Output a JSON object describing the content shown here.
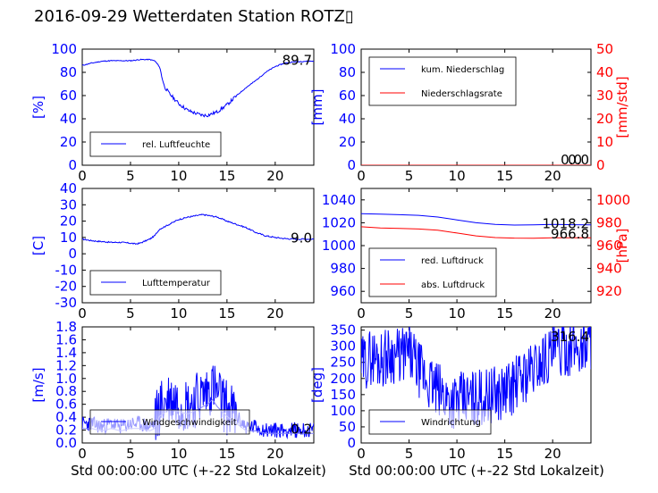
{
  "title": "2016-09-29 Wetterdaten Station ROTZ",
  "title_glyph": "▯",
  "xlabel": "Std 00:00:00 UTC (+-22 Std Lokalzeit)",
  "colors": {
    "left_axis": "#0000ff",
    "right_axis": "#ff0000",
    "series1": "#0000ff",
    "series2": "#ff0000",
    "wind_avg": "#8080ff"
  },
  "chart_data": [
    {
      "type": "line",
      "xlim": [
        0,
        24
      ],
      "xticks": [
        0,
        5,
        10,
        15,
        20
      ],
      "ylim": [
        0,
        100
      ],
      "yticks": [
        0,
        20,
        40,
        60,
        80,
        100
      ],
      "ylabel": "[%]",
      "legend": "lower-left",
      "series": [
        {
          "name": "rel. Luftfeuchte",
          "x": [
            0,
            0.5,
            1,
            2,
            3,
            4,
            5,
            6,
            7,
            7.5,
            8,
            8.5,
            9,
            10,
            11,
            12,
            12.5,
            13,
            14,
            15,
            16,
            17,
            18,
            19,
            20,
            21,
            22,
            23,
            24
          ],
          "y": [
            86,
            87,
            88,
            89.5,
            90,
            90,
            90,
            91,
            91,
            90,
            85,
            68,
            62,
            53,
            47,
            44,
            43,
            43,
            46,
            52,
            60,
            67,
            73,
            80,
            85,
            88,
            89,
            89.5,
            89.7
          ]
        }
      ],
      "last_value": "89.7"
    },
    {
      "type": "line",
      "xlim": [
        0,
        24
      ],
      "xticks": [
        0,
        5,
        10,
        15,
        20
      ],
      "ylim": [
        0,
        100
      ],
      "yticks": [
        0,
        20,
        40,
        60,
        80,
        100
      ],
      "ylim_right": [
        0,
        50
      ],
      "yticks_right": [
        0,
        10,
        20,
        30,
        40,
        50
      ],
      "ylabel": "[mm]",
      "ylabel_right": "[mm/std]",
      "legend": "upper-left",
      "series": [
        {
          "name": "kum. Niederschlag",
          "x": [
            0,
            24
          ],
          "y": [
            0,
            0
          ]
        },
        {
          "name": "Niederschlagsrate",
          "x": [
            0,
            24
          ],
          "y": [
            0,
            0
          ]
        }
      ],
      "last_values": [
        "0.0",
        "0.0"
      ]
    },
    {
      "type": "line",
      "xlim": [
        0,
        24
      ],
      "xticks": [
        0,
        5,
        10,
        15,
        20
      ],
      "ylim": [
        -30,
        40
      ],
      "yticks": [
        -30,
        -20,
        -10,
        0,
        10,
        20,
        30,
        40
      ],
      "ylabel": "[C]",
      "legend": "lower-left",
      "series": [
        {
          "name": "Lufttemperatur",
          "x": [
            0,
            1,
            2,
            3,
            4,
            5,
            5.5,
            6,
            7,
            7.5,
            8,
            9,
            10,
            11,
            12,
            12.5,
            13,
            14,
            15,
            16,
            17,
            18,
            19,
            20,
            21,
            22,
            23,
            24
          ],
          "y": [
            9,
            8,
            7.5,
            7,
            7,
            6.5,
            6,
            6.5,
            9,
            11,
            15,
            18,
            21,
            22.5,
            23.5,
            24,
            23.5,
            22.5,
            20,
            18,
            16,
            13,
            11,
            10,
            9.3,
            9,
            9,
            9
          ]
        }
      ],
      "last_value": "9.0"
    },
    {
      "type": "line",
      "xlim": [
        0,
        24
      ],
      "xticks": [
        0,
        5,
        10,
        15,
        20
      ],
      "ylim": [
        950,
        1050
      ],
      "yticks": [
        960,
        980,
        1000,
        1020,
        1040
      ],
      "ylim_right": [
        910,
        1010
      ],
      "yticks_right": [
        920,
        940,
        960,
        980,
        1000
      ],
      "ylabel_right": "[hPa]",
      "legend": "lower-left",
      "series": [
        {
          "name": "red. Luftdruck",
          "x": [
            0,
            2,
            4,
            6,
            8,
            10,
            12,
            14,
            16,
            18,
            20,
            22,
            24
          ],
          "y": [
            1028,
            1027.5,
            1027,
            1026.5,
            1025,
            1022.5,
            1020,
            1018.5,
            1018,
            1018.2,
            1018.5,
            1018.3,
            1018.2
          ]
        },
        {
          "name": "abs. Luftdruck",
          "x": [
            0,
            2,
            4,
            6,
            8,
            10,
            12,
            14,
            16,
            18,
            20,
            22,
            24
          ],
          "y": [
            976.5,
            975.5,
            975,
            974.5,
            973.5,
            971,
            968.5,
            967,
            966.6,
            966.5,
            966.8,
            966.8,
            966.8
          ]
        }
      ],
      "last_values": [
        "1018.2",
        "966.8"
      ]
    },
    {
      "type": "line",
      "xlim": [
        0,
        24
      ],
      "xticks": [
        0,
        5,
        10,
        15,
        20
      ],
      "ylim": [
        0,
        1.8
      ],
      "yticks": [
        0,
        0.2,
        0.4,
        0.6,
        0.8,
        1.0,
        1.2,
        1.4,
        1.6,
        1.8
      ],
      "ylabel": "[m/s]",
      "legend": "lower-left",
      "series": [
        {
          "name": "Windgeschwindigkeit",
          "x": [
            0,
            1,
            2,
            3,
            4,
            5,
            6,
            7,
            7.5,
            8,
            9,
            10,
            11,
            12,
            13,
            13.5,
            14,
            15,
            16,
            17,
            18,
            19,
            20,
            21,
            22,
            23,
            24
          ],
          "y": [
            0.3,
            0.3,
            0.25,
            0.3,
            0.25,
            0.3,
            0.3,
            0.25,
            0.3,
            0.55,
            0.7,
            0.65,
            0.6,
            0.7,
            0.8,
            0.9,
            0.75,
            0.55,
            0.4,
            0.25,
            0.25,
            0.2,
            0.2,
            0.2,
            0.2,
            0.2,
            0.2
          ]
        }
      ],
      "last_value": "0.2"
    },
    {
      "type": "line",
      "xlim": [
        0,
        24
      ],
      "xticks": [
        0,
        5,
        10,
        15,
        20
      ],
      "ylim": [
        0,
        360
      ],
      "yticks": [
        0,
        50,
        100,
        150,
        200,
        250,
        300,
        350
      ],
      "ylabel": "[deg]",
      "legend": "lower-left",
      "series": [
        {
          "name": "Windrichtung",
          "x": [
            0,
            1,
            2,
            3,
            4,
            5,
            6,
            7,
            8,
            9,
            10,
            11,
            12,
            13,
            14,
            15,
            16,
            17,
            18,
            19,
            20,
            21,
            22,
            23,
            24
          ],
          "y": [
            240,
            270,
            260,
            275,
            270,
            280,
            230,
            190,
            160,
            140,
            130,
            135,
            140,
            145,
            150,
            160,
            180,
            210,
            230,
            260,
            280,
            290,
            300,
            295,
            316.4
          ]
        }
      ],
      "last_value": "316.4"
    }
  ]
}
